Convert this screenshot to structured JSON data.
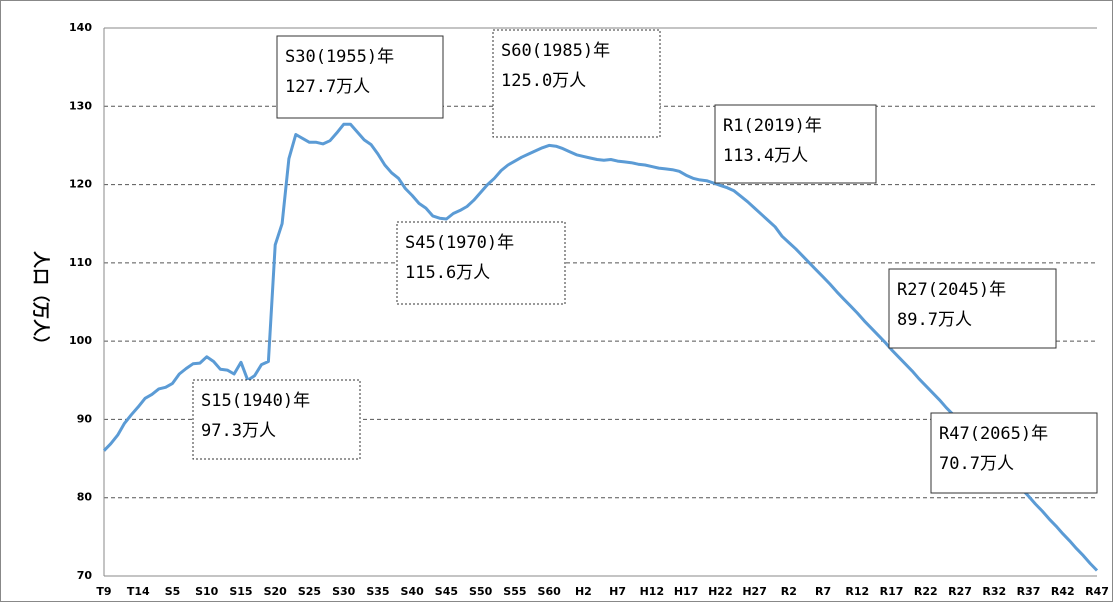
{
  "chart_data": {
    "type": "line",
    "y_label": "人口（万人）",
    "categories": [
      "T9",
      null,
      null,
      null,
      null,
      "T14",
      null,
      null,
      null,
      null,
      "S5",
      null,
      null,
      null,
      null,
      "S10",
      null,
      null,
      null,
      null,
      "S15",
      null,
      null,
      null,
      null,
      "S20",
      null,
      null,
      null,
      null,
      "S25",
      null,
      null,
      null,
      null,
      "S30",
      null,
      null,
      null,
      null,
      "S35",
      null,
      null,
      null,
      null,
      "S40",
      null,
      null,
      null,
      null,
      "S45",
      null,
      null,
      null,
      null,
      "S50",
      null,
      null,
      null,
      null,
      "S55",
      null,
      null,
      null,
      null,
      "S60",
      null,
      null,
      null,
      null,
      "H2",
      null,
      null,
      null,
      null,
      "H7",
      null,
      null,
      null,
      null,
      "H12",
      null,
      null,
      null,
      null,
      "H17",
      null,
      null,
      null,
      null,
      "H22",
      null,
      null,
      null,
      null,
      "H27",
      null,
      null,
      null,
      null,
      "R2",
      null,
      null,
      null,
      null,
      "R7",
      null,
      null,
      null,
      null,
      "R12",
      null,
      null,
      null,
      null,
      "R17",
      null,
      null,
      null,
      null,
      "R22",
      null,
      null,
      null,
      null,
      "R27",
      null,
      null,
      null,
      null,
      "R32",
      null,
      null,
      null,
      null,
      "R37",
      null,
      null,
      null,
      null,
      "R42",
      null,
      null,
      null,
      null,
      "R47"
    ],
    "values": [
      86.0,
      86.9,
      88.0,
      89.5,
      90.6,
      91.6,
      92.7,
      93.2,
      93.9,
      94.1,
      94.6,
      95.8,
      96.5,
      97.1,
      97.2,
      98.0,
      97.4,
      96.4,
      96.3,
      95.8,
      97.3,
      95.0,
      95.6,
      97.0,
      97.4,
      112.3,
      115.0,
      123.3,
      126.4,
      125.9,
      125.4,
      125.4,
      125.2,
      125.6,
      126.6,
      127.7,
      127.7,
      126.7,
      125.7,
      125.1,
      123.9,
      122.5,
      121.5,
      120.8,
      119.5,
      118.6,
      117.6,
      117.0,
      116.0,
      115.7,
      115.6,
      116.3,
      116.7,
      117.2,
      118.0,
      119.0,
      120.0,
      120.8,
      121.8,
      122.5,
      123.0,
      123.5,
      123.9,
      124.3,
      124.7,
      125.0,
      124.9,
      124.6,
      124.2,
      123.8,
      123.6,
      123.4,
      123.2,
      123.1,
      123.2,
      123.0,
      122.9,
      122.8,
      122.6,
      122.5,
      122.3,
      122.1,
      122.0,
      121.9,
      121.7,
      121.2,
      120.8,
      120.6,
      120.5,
      120.2,
      119.9,
      119.6,
      119.2,
      118.5,
      117.8,
      117.0,
      116.2,
      115.4,
      114.6,
      113.4,
      112.6,
      111.8,
      110.9,
      110.0,
      109.1,
      108.2,
      107.3,
      106.3,
      105.4,
      104.5,
      103.6,
      102.6,
      101.7,
      100.8,
      99.9,
      98.9,
      98.0,
      97.1,
      96.2,
      95.2,
      94.3,
      93.4,
      92.5,
      91.5,
      90.6,
      89.7,
      88.7,
      87.8,
      86.8,
      85.9,
      84.9,
      84.0,
      83.0,
      82.1,
      81.1,
      80.2,
      79.2,
      78.3,
      77.3,
      76.4,
      75.4,
      74.5,
      73.5,
      72.6,
      71.6,
      70.7
    ],
    "color": "#5b9bd5",
    "ylim": [
      70,
      140
    ],
    "yticks": [
      70,
      80,
      90,
      100,
      110,
      120,
      130,
      140
    ],
    "grid": true,
    "annotations": [
      {
        "lines": [
          "S15(1940)年",
          "97.3万人"
        ]
      },
      {
        "lines": [
          "S30(1955)年",
          "127.7万人"
        ]
      },
      {
        "lines": [
          "S45(1970)年",
          "115.6万人"
        ]
      },
      {
        "lines": [
          "S60(1985)年",
          "125.0万人"
        ]
      },
      {
        "lines": [
          "R1(2019)年",
          "113.4万人"
        ]
      },
      {
        "lines": [
          "R27(2045)年",
          "89.7万人"
        ]
      },
      {
        "lines": [
          "R47(2065)年",
          "70.7万人"
        ]
      }
    ]
  }
}
